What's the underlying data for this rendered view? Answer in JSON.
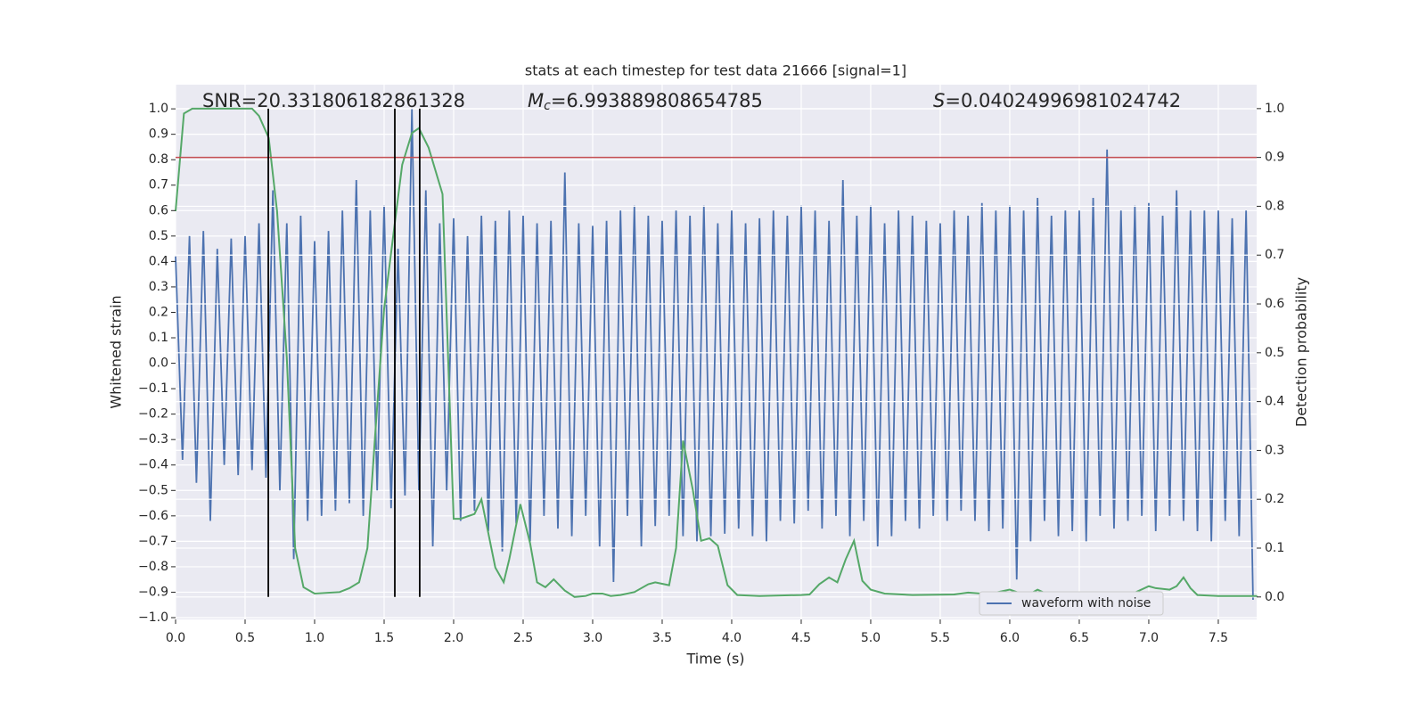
{
  "chart_data": {
    "type": "line",
    "title": "stats at each timestep for test data 21666 [signal=1]",
    "x_label": "Time (s)",
    "y_label": "Whitened strain",
    "y2_label": "Detection probability",
    "annotations": [
      {
        "parts": [
          "SNR=20.331806182861328"
        ]
      },
      {
        "parts": [
          "M",
          "c",
          "=6.993889808654785"
        ]
      },
      {
        "parts": [
          "S",
          "=0.04024996981024742"
        ]
      }
    ],
    "xlim": [
      0,
      7.776
    ],
    "ylim": [
      -1.007,
      1.095
    ],
    "y2lim": [
      -0.046,
      1.049
    ],
    "xticks": [
      {
        "value": 0,
        "label": "0.0"
      },
      {
        "value": 0.5,
        "label": "0.5"
      },
      {
        "value": 1,
        "label": "1.0"
      },
      {
        "value": 1.5,
        "label": "1.5"
      },
      {
        "value": 2,
        "label": "2.0"
      },
      {
        "value": 2.5,
        "label": "2.5"
      },
      {
        "value": 3,
        "label": "3.0"
      },
      {
        "value": 3.5,
        "label": "3.5"
      },
      {
        "value": 4,
        "label": "4.0"
      },
      {
        "value": 4.5,
        "label": "4.5"
      },
      {
        "value": 5,
        "label": "5.0"
      },
      {
        "value": 5.5,
        "label": "5.5"
      },
      {
        "value": 6,
        "label": "6.0"
      },
      {
        "value": 6.5,
        "label": "6.5"
      },
      {
        "value": 7,
        "label": "7.0"
      },
      {
        "value": 7.5,
        "label": "7.5"
      }
    ],
    "yticks": [
      {
        "value": -1,
        "label": "−1.0"
      },
      {
        "value": -0.9,
        "label": "−0.9"
      },
      {
        "value": -0.8,
        "label": "−0.8"
      },
      {
        "value": -0.7,
        "label": "−0.7"
      },
      {
        "value": -0.6,
        "label": "−0.6"
      },
      {
        "value": -0.5,
        "label": "−0.5"
      },
      {
        "value": -0.4,
        "label": "−0.4"
      },
      {
        "value": -0.3,
        "label": "−0.3"
      },
      {
        "value": -0.2,
        "label": "−0.2"
      },
      {
        "value": -0.1,
        "label": "−0.1"
      },
      {
        "value": 0,
        "label": "0.0"
      },
      {
        "value": 0.1,
        "label": "0.1"
      },
      {
        "value": 0.2,
        "label": "0.2"
      },
      {
        "value": 0.3,
        "label": "0.3"
      },
      {
        "value": 0.4,
        "label": "0.4"
      },
      {
        "value": 0.5,
        "label": "0.5"
      },
      {
        "value": 0.6,
        "label": "0.6"
      },
      {
        "value": 0.7,
        "label": "0.7"
      },
      {
        "value": 0.8,
        "label": "0.8"
      },
      {
        "value": 0.9,
        "label": "0.9"
      },
      {
        "value": 1,
        "label": "1.0"
      }
    ],
    "y2ticks": [
      {
        "value": 0,
        "label": "0.0"
      },
      {
        "value": 0.1,
        "label": "0.1"
      },
      {
        "value": 0.2,
        "label": "0.2"
      },
      {
        "value": 0.3,
        "label": "0.3"
      },
      {
        "value": 0.4,
        "label": "0.4"
      },
      {
        "value": 0.5,
        "label": "0.5"
      },
      {
        "value": 0.6,
        "label": "0.6"
      },
      {
        "value": 0.7,
        "label": "0.7"
      },
      {
        "value": 0.8,
        "label": "0.8"
      },
      {
        "value": 0.9,
        "label": "0.9"
      },
      {
        "value": 1,
        "label": "1.0"
      }
    ],
    "grid": true,
    "background": "#eaeaf2",
    "legend": "lower right",
    "series": [
      {
        "name": "waveform with noise",
        "color": "#4c72b0",
        "x": [
          0,
          0.05,
          0.1,
          0.15,
          0.2,
          0.25,
          0.3,
          0.35,
          0.4,
          0.45,
          0.5,
          0.55,
          0.6,
          0.65,
          0.7,
          0.75,
          0.8,
          0.85,
          0.9,
          0.95,
          1,
          1.05,
          1.1,
          1.15,
          1.2,
          1.25,
          1.3,
          1.35,
          1.4,
          1.45,
          1.5,
          1.55,
          1.6,
          1.65,
          1.7,
          1.75,
          1.8,
          1.85,
          1.9,
          1.95,
          2,
          2.05,
          2.1,
          2.15,
          2.2,
          2.25,
          2.3,
          2.35,
          2.4,
          2.45,
          2.5,
          2.55,
          2.6,
          2.65,
          2.7,
          2.75,
          2.8,
          2.85,
          2.9,
          2.95,
          3,
          3.05,
          3.1,
          3.15,
          3.2,
          3.25,
          3.3,
          3.35,
          3.4,
          3.45,
          3.5,
          3.55,
          3.6,
          3.65,
          3.7,
          3.75,
          3.8,
          3.85,
          3.9,
          3.95,
          4,
          4.05,
          4.1,
          4.15,
          4.2,
          4.25,
          4.3,
          4.35,
          4.4,
          4.45,
          4.5,
          4.55,
          4.6,
          4.65,
          4.7,
          4.75,
          4.8,
          4.85,
          4.9,
          4.95,
          5,
          5.05,
          5.1,
          5.15,
          5.2,
          5.25,
          5.3,
          5.35,
          5.4,
          5.45,
          5.5,
          5.55,
          5.6,
          5.65,
          5.7,
          5.75,
          5.8,
          5.85,
          5.9,
          5.95,
          6,
          6.05,
          6.1,
          6.15,
          6.2,
          6.25,
          6.3,
          6.35,
          6.4,
          6.45,
          6.5,
          6.55,
          6.6,
          6.65,
          6.7,
          6.75,
          6.8,
          6.85,
          6.9,
          6.95,
          7,
          7.05,
          7.1,
          7.15,
          7.2,
          7.25,
          7.3,
          7.35,
          7.4,
          7.45,
          7.5,
          7.55,
          7.6,
          7.65,
          7.7,
          7.75
        ],
        "values": [
          0.42,
          -0.38,
          0.5,
          -0.47,
          0.52,
          -0.62,
          0.45,
          -0.4,
          0.49,
          -0.44,
          0.5,
          -0.42,
          0.55,
          -0.45,
          0.68,
          -0.5,
          0.55,
          -0.77,
          0.58,
          -0.62,
          0.48,
          -0.6,
          0.52,
          -0.58,
          0.6,
          -0.55,
          0.72,
          -0.6,
          0.6,
          -0.5,
          0.62,
          -0.57,
          0.45,
          -0.52,
          1.0,
          -0.5,
          0.68,
          -0.72,
          0.55,
          -0.5,
          0.57,
          -0.62,
          0.5,
          -0.58,
          0.58,
          -0.66,
          0.56,
          -0.74,
          0.6,
          -0.63,
          0.58,
          -0.7,
          0.55,
          -0.6,
          0.56,
          -0.65,
          0.75,
          -0.68,
          0.55,
          -0.6,
          0.54,
          -0.72,
          0.56,
          -0.86,
          0.6,
          -0.6,
          0.62,
          -0.72,
          0.58,
          -0.64,
          0.56,
          -0.6,
          0.6,
          -0.68,
          0.58,
          -0.7,
          0.62,
          -0.68,
          0.55,
          -0.67,
          0.6,
          -0.65,
          0.55,
          -0.68,
          0.57,
          -0.7,
          0.6,
          -0.62,
          0.58,
          -0.63,
          0.62,
          -0.58,
          0.6,
          -0.65,
          0.56,
          -0.6,
          0.72,
          -0.68,
          0.58,
          -0.62,
          0.62,
          -0.72,
          0.55,
          -0.68,
          0.6,
          -0.62,
          0.58,
          -0.65,
          0.56,
          -0.6,
          0.55,
          -0.62,
          0.6,
          -0.58,
          0.58,
          -0.62,
          0.63,
          -0.66,
          0.6,
          -0.65,
          0.62,
          -0.85,
          0.6,
          -0.7,
          0.65,
          -0.62,
          0.58,
          -0.68,
          0.6,
          -0.66,
          0.6,
          -0.7,
          0.65,
          -0.6,
          0.84,
          -0.65,
          0.6,
          -0.62,
          0.62,
          -0.6,
          0.63,
          -0.66,
          0.58,
          -0.6,
          0.68,
          -0.62,
          0.6,
          -0.66,
          0.6,
          -0.7,
          0.6,
          -0.62,
          0.57,
          -0.68,
          0.6,
          -0.93
        ]
      }
    ],
    "detection": {
      "color": "#55a868",
      "axis": "y2",
      "x": [
        0,
        0.06,
        0.12,
        0.3,
        0.55,
        0.6,
        0.67,
        0.73,
        0.8,
        0.86,
        0.92,
        1.0,
        1.18,
        1.25,
        1.32,
        1.38,
        1.44,
        1.5,
        1.57,
        1.63,
        1.7,
        1.75,
        1.82,
        1.92,
        2.0,
        2.05,
        2.15,
        2.2,
        2.3,
        2.36,
        2.4,
        2.48,
        2.55,
        2.6,
        2.66,
        2.72,
        2.8,
        2.87,
        2.95,
        3.0,
        3.07,
        3.13,
        3.2,
        3.3,
        3.4,
        3.45,
        3.55,
        3.6,
        3.65,
        3.72,
        3.78,
        3.84,
        3.9,
        3.97,
        4.04,
        4.2,
        4.5,
        4.56,
        4.63,
        4.7,
        4.76,
        4.82,
        4.88,
        4.94,
        5.0,
        5.1,
        5.3,
        5.6,
        5.7,
        5.8,
        5.9,
        6.0,
        6.06,
        6.15,
        6.2,
        6.26,
        6.35,
        6.5,
        6.8,
        6.9,
        7.0,
        7.05,
        7.15,
        7.2,
        7.25,
        7.3,
        7.35,
        7.5,
        7.78
      ],
      "values": [
        0.79,
        0.99,
        1.0,
        1.0,
        1.0,
        0.985,
        0.94,
        0.79,
        0.49,
        0.1,
        0.02,
        0.007,
        0.01,
        0.018,
        0.03,
        0.1,
        0.35,
        0.59,
        0.75,
        0.885,
        0.95,
        0.96,
        0.92,
        0.825,
        0.16,
        0.16,
        0.17,
        0.2,
        0.06,
        0.03,
        0.077,
        0.19,
        0.11,
        0.03,
        0.02,
        0.036,
        0.013,
        0,
        0.002,
        0.007,
        0.007,
        0.002,
        0.004,
        0.01,
        0.026,
        0.03,
        0.024,
        0.1,
        0.32,
        0.22,
        0.115,
        0.12,
        0.105,
        0.024,
        0.004,
        0.002,
        0.004,
        0.005,
        0.026,
        0.04,
        0.03,
        0.077,
        0.115,
        0.033,
        0.015,
        0.007,
        0.004,
        0.005,
        0.009,
        0.007,
        0.009,
        0.015,
        0.009,
        0.007,
        0.015,
        0.007,
        0.004,
        0.004,
        0.005,
        0.009,
        0.022,
        0.018,
        0.015,
        0.022,
        0.04,
        0.018,
        0.004,
        0.002,
        0.002
      ]
    },
    "hlines": [
      {
        "value": 0.9,
        "axis": "y2",
        "color": "#c44e52"
      }
    ],
    "vlines": {
      "x": [
        0.667,
        1.577,
        1.756
      ],
      "ymin": 0,
      "ymax": 1,
      "axis": "y2",
      "color": "#000000"
    }
  }
}
